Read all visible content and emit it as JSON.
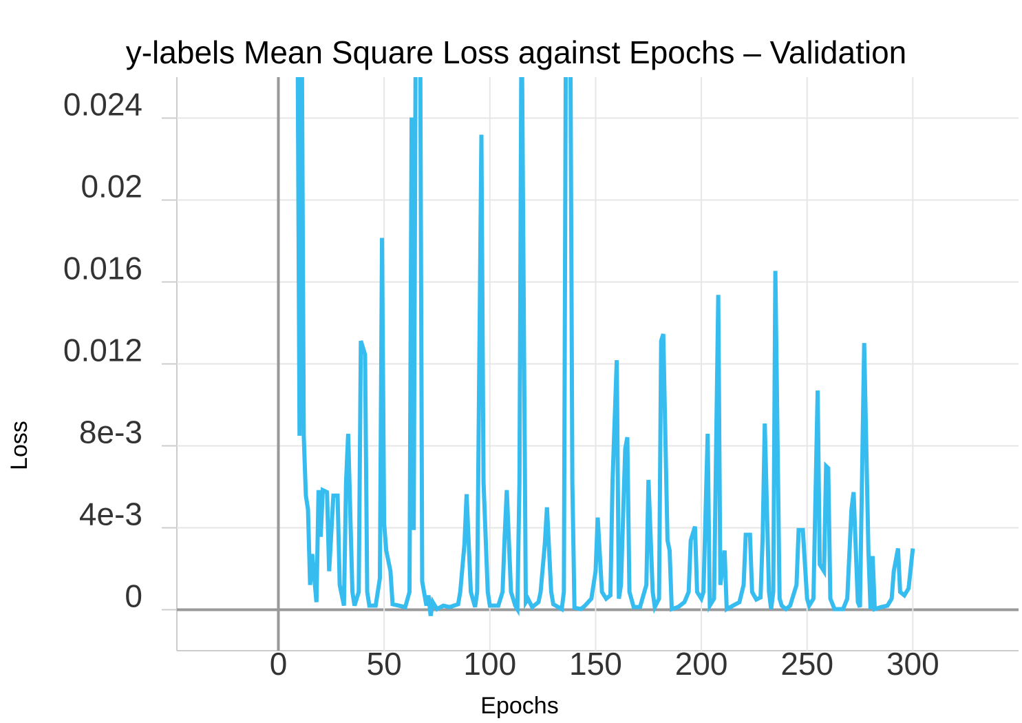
{
  "chart_data": {
    "type": "line",
    "title": "y-labels Mean Square Loss against Epochs – Validation",
    "x_label": "Epochs",
    "y_label": "Loss",
    "color": "#36bcee",
    "grid": true,
    "xlim": [
      -48,
      350
    ],
    "xticks": [
      0,
      50,
      100,
      150,
      200,
      250,
      300
    ],
    "ylim": [
      -0.002,
      0.026
    ],
    "yticks": [
      0,
      {
        "value": 0.004,
        "label": "4e-3"
      },
      {
        "value": 0.008,
        "label": "8e-3"
      },
      0.012,
      0.016,
      0.02,
      0.024
    ],
    "x": [
      9,
      10,
      11,
      12,
      13,
      14,
      15,
      16,
      18,
      19,
      20,
      21,
      23,
      24,
      26,
      28,
      29,
      31,
      32,
      33,
      35,
      36,
      38,
      39,
      41,
      42,
      43,
      46,
      48,
      49,
      50,
      51,
      53,
      54,
      57,
      60,
      62,
      63,
      64,
      65,
      67,
      68,
      70,
      71,
      72,
      73,
      75,
      78,
      81,
      85,
      86,
      88,
      89,
      91,
      93,
      94,
      96,
      97,
      99,
      100,
      104,
      106,
      107,
      108,
      110,
      112,
      113,
      114,
      115,
      117,
      118,
      120,
      123,
      124,
      126,
      127,
      129,
      130,
      134,
      135,
      136,
      138,
      139,
      140,
      143,
      145,
      148,
      150,
      151,
      153,
      155,
      157,
      158,
      160,
      161,
      162,
      164,
      165,
      166,
      168,
      171,
      174,
      175,
      177,
      178,
      180,
      181,
      182,
      184,
      185,
      186,
      189,
      192,
      194,
      195,
      197,
      198,
      200,
      201,
      203,
      204,
      206,
      208,
      209,
      211,
      212,
      215,
      218,
      220,
      221,
      223,
      224,
      226,
      228,
      229,
      230,
      232,
      233,
      234,
      235,
      237,
      238,
      240,
      242,
      245,
      246,
      248,
      250,
      251,
      253,
      255,
      256,
      258,
      259,
      260,
      261,
      263,
      267,
      269,
      271,
      272,
      274,
      275,
      277,
      279,
      280,
      281,
      282,
      285,
      288,
      290,
      291,
      293,
      294,
      296,
      298,
      300
    ],
    "values": [
      0.03,
      0.00849,
      0.03,
      0.00849,
      0.00557,
      0.0049,
      0.00121,
      0.00272,
      0.00037,
      0.00584,
      0.00356,
      0.00584,
      0.00574,
      0.00188,
      0.00557,
      0.00557,
      0.00121,
      0.0002,
      0.00624,
      0.00859,
      0.00087,
      0.0002,
      0.00087,
      0.01312,
      0.01245,
      0.00087,
      0.0002,
      0.0002,
      0.00154,
      0.01815,
      0.00423,
      0.00289,
      0.00188,
      0.00027,
      0.0002,
      0.00013,
      0.00087,
      0.02403,
      0.00389,
      0.03,
      0.03,
      0.00138,
      0.0002,
      0.0007,
      -0.0003,
      0.00037,
      3e-05,
      0.0002,
      0.00013,
      0.00027,
      0.00087,
      0.00322,
      0.00564,
      0.00087,
      0.00013,
      0.00087,
      0.02319,
      0.00624,
      0.00087,
      0.0002,
      0.0002,
      0.00087,
      0.00356,
      0.00584,
      0.00087,
      0.0002,
      3e-05,
      0.00624,
      0.03,
      0.00037,
      0.00054,
      0.00013,
      0.00037,
      0.00087,
      0.00322,
      0.005,
      0.00087,
      0.00027,
      3e-05,
      0.00087,
      0.03,
      0.03,
      0.00624,
      0.0001,
      3e-05,
      0.0002,
      0.00054,
      0.00188,
      0.0045,
      0.00087,
      0.00054,
      0.0007,
      0.00624,
      0.01218,
      0.00054,
      0.00121,
      0.00785,
      0.00842,
      0.00087,
      0.00013,
      0.00013,
      0.00121,
      0.00634,
      0.00087,
      0.00013,
      0.00054,
      0.01312,
      0.01346,
      0.00339,
      0.00289,
      3e-05,
      0.00013,
      0.00037,
      0.00087,
      0.00339,
      0.00406,
      0.00087,
      0.00054,
      0.00087,
      0.00859,
      0.0002,
      0.00054,
      0.01537,
      0.00121,
      0.00289,
      3e-05,
      0.0002,
      0.00037,
      0.00121,
      0.00366,
      0.00366,
      0.00087,
      0.0005,
      0.0006,
      0.00356,
      0.00909,
      0.00087,
      3e-05,
      0.00087,
      0.01654,
      0.00054,
      0.0002,
      3e-05,
      0.0002,
      0.00121,
      0.00389,
      0.00389,
      0.00054,
      0.0002,
      0.00054,
      0.0107,
      0.00221,
      0.00188,
      0.00701,
      0.00691,
      0.00054,
      3e-05,
      3e-05,
      0.00054,
      0.00491,
      0.00574,
      0.00037,
      0.00013,
      0.01302,
      0.00289,
      3e-05,
      0.00262,
      3e-05,
      0.00013,
      0.0002,
      0.00054,
      0.00188,
      0.00299,
      0.00087,
      0.0007,
      0.00104,
      0.00299
    ]
  }
}
